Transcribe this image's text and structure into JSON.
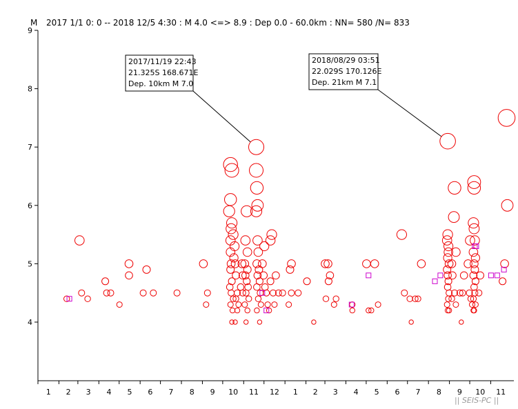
{
  "header": {
    "ylabel": "M",
    "title": "2017 1/1 0: 0 -- 2018 12/5 4:30  : M 4.0 <=> 8.9   :  Dep 0.0 - 60.0km :  NN= 580 /N= 833"
  },
  "credit": "|| SEIS-PC ||",
  "colors": {
    "event": "#ee0000",
    "square": "#cc00cc",
    "axis": "#000000"
  },
  "chart_data": {
    "type": "scatter",
    "title": "2017 1/1 0: 0 -- 2018 12/5 4:30  : M 4.0 <=> 8.9   :  Dep 0.0 - 60.0km :  NN= 580 /N= 833",
    "ylabel": "M",
    "xlabel": "",
    "x_range": [
      "2017-01-01",
      "2018-12-05"
    ],
    "ylim": [
      3,
      9
    ],
    "yticks": [
      "4",
      "5",
      "6",
      "7",
      "8",
      "9"
    ],
    "month_labels": [
      "1",
      "2",
      "3",
      "4",
      "5",
      "6",
      "7",
      "8",
      "9",
      "10",
      "11",
      "12",
      "1",
      "2",
      "3",
      "4",
      "5",
      "6",
      "7",
      "8",
      "9",
      "10",
      "11"
    ],
    "grid": false,
    "annotations": [
      {
        "lines": [
          "2017/11/19 22:43",
          "21.325S   168.671E",
          "Dep. 10km    M 7.0"
        ],
        "date": "2017-11-19",
        "mag": 7.0
      },
      {
        "lines": [
          "2018/08/29 03:51",
          "22.029S   170.126E",
          "Dep. 21km    M 7.1"
        ],
        "date": "2018-08-29",
        "mag": 7.1
      }
    ],
    "circle_events": [
      [
        "2017-02-12",
        4.4
      ],
      [
        "2017-03-03",
        5.4
      ],
      [
        "2017-03-06",
        4.5
      ],
      [
        "2017-03-15",
        4.4
      ],
      [
        "2017-04-10",
        4.7
      ],
      [
        "2017-04-12",
        4.5
      ],
      [
        "2017-04-18",
        4.5
      ],
      [
        "2017-05-01",
        4.3
      ],
      [
        "2017-05-15",
        5.0
      ],
      [
        "2017-05-15",
        4.8
      ],
      [
        "2017-06-05",
        4.5
      ],
      [
        "2017-06-10",
        4.9
      ],
      [
        "2017-06-20",
        4.5
      ],
      [
        "2017-07-25",
        4.5
      ],
      [
        "2017-09-02",
        5.0
      ],
      [
        "2017-09-06",
        4.3
      ],
      [
        "2017-09-08",
        4.5
      ],
      [
        "2017-10-12",
        6.7
      ],
      [
        "2017-10-14",
        6.6
      ],
      [
        "2017-10-12",
        6.1
      ],
      [
        "2017-10-10",
        5.9
      ],
      [
        "2017-10-14",
        5.7
      ],
      [
        "2017-10-13",
        5.6
      ],
      [
        "2017-10-16",
        5.5
      ],
      [
        "2017-10-12",
        5.4
      ],
      [
        "2017-10-18",
        5.3
      ],
      [
        "2017-10-12",
        5.2
      ],
      [
        "2017-10-17",
        5.1
      ],
      [
        "2017-10-13",
        5.0
      ],
      [
        "2017-10-19",
        5.0
      ],
      [
        "2017-10-12",
        4.9
      ],
      [
        "2017-10-20",
        4.8
      ],
      [
        "2017-10-14",
        4.7
      ],
      [
        "2017-10-11",
        4.6
      ],
      [
        "2017-10-22",
        4.5
      ],
      [
        "2017-10-13",
        4.5
      ],
      [
        "2017-10-16",
        4.4
      ],
      [
        "2017-10-20",
        4.4
      ],
      [
        "2017-10-12",
        4.3
      ],
      [
        "2017-10-24",
        4.3
      ],
      [
        "2017-10-15",
        4.2
      ],
      [
        "2017-10-22",
        4.2
      ],
      [
        "2017-10-14",
        4.0
      ],
      [
        "2017-10-19",
        4.0
      ],
      [
        "2017-10-29",
        5.0
      ],
      [
        "2017-10-30",
        4.8
      ],
      [
        "2017-10-27",
        4.6
      ],
      [
        "2017-10-30",
        4.5
      ],
      [
        "2017-11-05",
        5.9
      ],
      [
        "2017-11-03",
        5.4
      ],
      [
        "2017-11-06",
        5.2
      ],
      [
        "2017-11-02",
        5.0
      ],
      [
        "2017-11-06",
        4.9
      ],
      [
        "2017-11-03",
        4.8
      ],
      [
        "2017-11-05",
        4.7
      ],
      [
        "2017-11-07",
        4.6
      ],
      [
        "2017-11-04",
        4.5
      ],
      [
        "2017-11-08",
        4.4
      ],
      [
        "2017-11-02",
        4.3
      ],
      [
        "2017-11-06",
        4.2
      ],
      [
        "2017-11-04",
        4.0
      ],
      [
        "2017-11-19",
        7.0
      ],
      [
        "2017-11-19",
        6.6
      ],
      [
        "2017-11-20",
        6.3
      ],
      [
        "2017-11-21",
        6.0
      ],
      [
        "2017-11-19",
        5.9
      ],
      [
        "2017-11-21",
        5.4
      ],
      [
        "2017-11-22",
        5.2
      ],
      [
        "2017-11-20",
        5.0
      ],
      [
        "2017-11-23",
        4.9
      ],
      [
        "2017-11-21",
        4.8
      ],
      [
        "2017-11-24",
        4.7
      ],
      [
        "2017-11-20",
        4.6
      ],
      [
        "2017-11-25",
        4.5
      ],
      [
        "2017-11-22",
        4.4
      ],
      [
        "2017-11-26",
        4.3
      ],
      [
        "2017-11-20",
        4.2
      ],
      [
        "2017-11-24",
        4.0
      ],
      [
        "2017-11-28",
        5.0
      ],
      [
        "2017-11-30",
        4.8
      ],
      [
        "2017-12-02",
        4.6
      ],
      [
        "2017-12-04",
        4.5
      ],
      [
        "2017-12-06",
        4.3
      ],
      [
        "2017-12-08",
        4.2
      ],
      [
        "2017-12-01",
        5.3
      ],
      [
        "2017-12-10",
        5.4
      ],
      [
        "2017-12-12",
        5.5
      ],
      [
        "2017-12-10",
        4.7
      ],
      [
        "2017-12-14",
        4.5
      ],
      [
        "2017-12-16",
        4.3
      ],
      [
        "2017-12-18",
        4.8
      ],
      [
        "2017-12-22",
        4.5
      ],
      [
        "2017-12-28",
        4.5
      ],
      [
        "2018-01-08",
        4.9
      ],
      [
        "2018-01-10",
        5.0
      ],
      [
        "2018-01-06",
        4.3
      ],
      [
        "2018-01-10",
        4.5
      ],
      [
        "2018-01-20",
        4.5
      ],
      [
        "2018-02-02",
        4.7
      ],
      [
        "2018-02-12",
        4.0
      ],
      [
        "2018-03-01",
        5.0
      ],
      [
        "2018-03-05",
        5.0
      ],
      [
        "2018-03-08",
        4.8
      ],
      [
        "2018-03-06",
        4.7
      ],
      [
        "2018-03-02",
        4.4
      ],
      [
        "2018-03-14",
        4.3
      ],
      [
        "2018-03-17",
        4.4
      ],
      [
        "2018-04-10",
        4.3
      ],
      [
        "2018-04-10",
        4.2
      ],
      [
        "2018-05-01",
        5.0
      ],
      [
        "2018-05-13",
        5.0
      ],
      [
        "2018-05-04",
        4.2
      ],
      [
        "2018-05-08",
        4.2
      ],
      [
        "2018-05-18",
        4.3
      ],
      [
        "2018-06-22",
        5.5
      ],
      [
        "2018-06-26",
        4.5
      ],
      [
        "2018-07-04",
        4.4
      ],
      [
        "2018-07-06",
        4.0
      ],
      [
        "2018-07-12",
        4.4
      ],
      [
        "2018-07-16",
        4.4
      ],
      [
        "2018-07-21",
        5.0
      ],
      [
        "2018-08-29",
        7.1
      ],
      [
        "2018-08-29",
        5.5
      ],
      [
        "2018-08-28",
        5.4
      ],
      [
        "2018-08-30",
        5.3
      ],
      [
        "2018-08-30",
        5.2
      ],
      [
        "2018-08-29",
        5.1
      ],
      [
        "2018-08-31",
        5.0
      ],
      [
        "2018-08-28",
        4.9
      ],
      [
        "2018-08-29",
        4.8
      ],
      [
        "2018-08-30",
        4.7
      ],
      [
        "2018-08-29",
        4.6
      ],
      [
        "2018-08-31",
        4.5
      ],
      [
        "2018-08-30",
        4.4
      ],
      [
        "2018-08-28",
        4.3
      ],
      [
        "2018-08-29",
        4.2
      ],
      [
        "2018-08-31",
        4.2
      ],
      [
        "2018-09-08",
        6.3
      ],
      [
        "2018-09-07",
        5.8
      ],
      [
        "2018-09-10",
        5.2
      ],
      [
        "2018-09-04",
        5.0
      ],
      [
        "2018-09-05",
        4.8
      ],
      [
        "2018-09-08",
        4.5
      ],
      [
        "2018-09-04",
        4.4
      ],
      [
        "2018-09-10",
        4.3
      ],
      [
        "2018-09-16",
        4.5
      ],
      [
        "2018-09-18",
        4.0
      ],
      [
        "2018-09-20",
        4.5
      ],
      [
        "2018-09-22",
        4.8
      ],
      [
        "2018-09-28",
        5.0
      ],
      [
        "2018-10-01",
        5.4
      ],
      [
        "2018-09-30",
        4.5
      ],
      [
        "2018-10-02",
        4.4
      ],
      [
        "2018-10-04",
        4.3
      ],
      [
        "2018-10-06",
        4.2
      ],
      [
        "2018-10-07",
        6.4
      ],
      [
        "2018-10-07",
        6.3
      ],
      [
        "2018-10-06",
        5.7
      ],
      [
        "2018-10-07",
        5.6
      ],
      [
        "2018-10-08",
        5.4
      ],
      [
        "2018-10-06",
        5.2
      ],
      [
        "2018-10-09",
        5.1
      ],
      [
        "2018-10-07",
        5.0
      ],
      [
        "2018-10-08",
        4.9
      ],
      [
        "2018-10-06",
        4.8
      ],
      [
        "2018-10-09",
        4.7
      ],
      [
        "2018-10-07",
        4.6
      ],
      [
        "2018-10-08",
        4.5
      ],
      [
        "2018-10-06",
        4.4
      ],
      [
        "2018-10-09",
        4.3
      ],
      [
        "2018-10-07",
        4.2
      ],
      [
        "2018-10-14",
        4.5
      ],
      [
        "2018-10-16",
        4.8
      ],
      [
        "2018-11-18",
        4.7
      ],
      [
        "2018-11-21",
        5.0
      ],
      [
        "2018-11-24",
        7.5
      ],
      [
        "2018-11-25",
        6.0
      ]
    ],
    "square_events": [
      [
        "2017-02-16",
        4.4
      ],
      [
        "2017-11-28",
        4.5
      ],
      [
        "2017-12-04",
        4.2
      ],
      [
        "2018-04-09",
        4.3
      ],
      [
        "2018-05-04",
        4.8
      ],
      [
        "2018-08-10",
        4.7
      ],
      [
        "2018-08-18",
        4.8
      ],
      [
        "2018-10-08",
        5.3
      ],
      [
        "2018-10-10",
        5.3
      ],
      [
        "2018-11-01",
        4.8
      ],
      [
        "2018-11-10",
        4.8
      ],
      [
        "2018-11-20",
        4.9
      ]
    ]
  }
}
